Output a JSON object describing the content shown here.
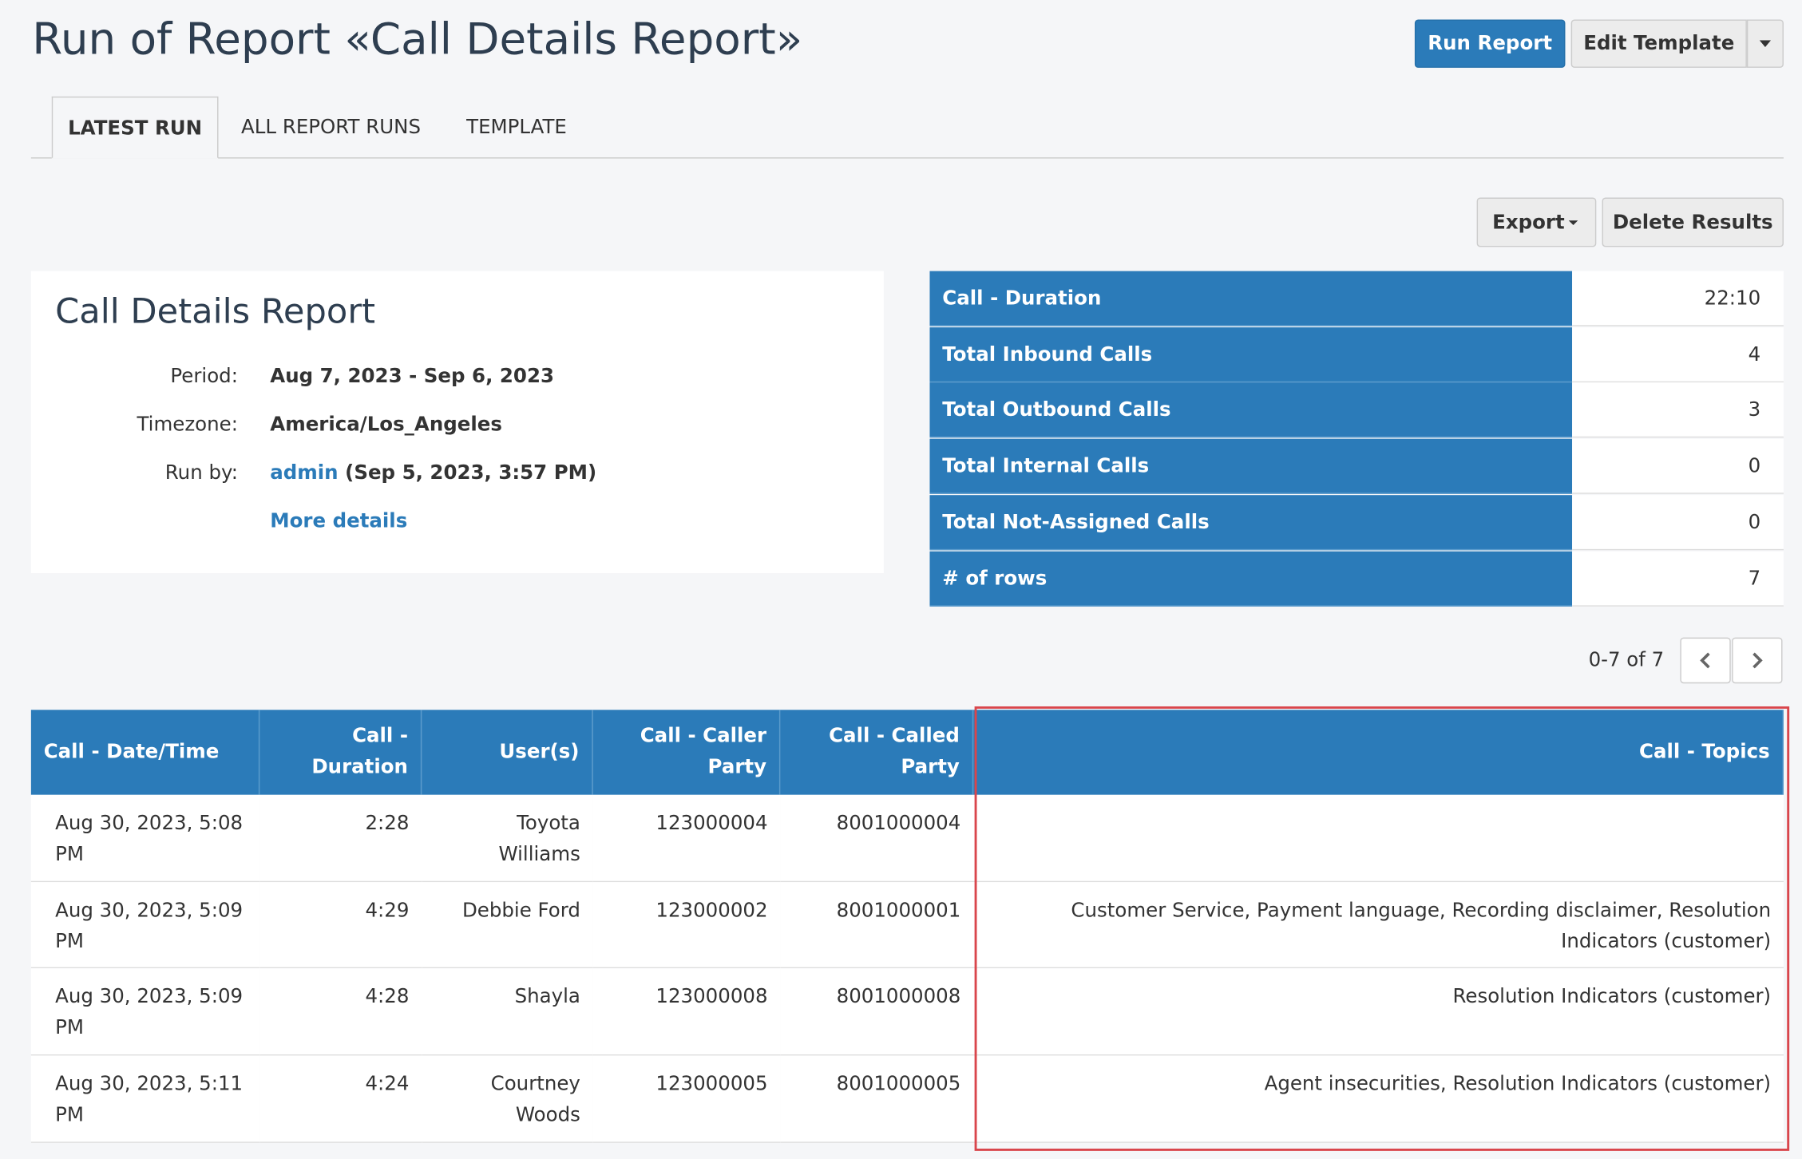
{
  "header": {
    "title": "Run of Report «Call Details Report»",
    "run_button": "Run Report",
    "edit_button": "Edit Template"
  },
  "tabs": [
    "LATEST RUN",
    "ALL REPORT RUNS",
    "TEMPLATE"
  ],
  "actions": {
    "export": "Export",
    "delete": "Delete Results"
  },
  "report": {
    "title": "Call Details Report",
    "fields": [
      {
        "label": "Period:",
        "value": "Aug 7, 2023 - Sep 6, 2023"
      },
      {
        "label": "Timezone:",
        "value": "America/Los_Angeles"
      },
      {
        "label": "Run by:",
        "link": "admin",
        "value": "(Sep 5, 2023, 3:57 PM)"
      }
    ],
    "more_details": "More details"
  },
  "summary": [
    {
      "label": "Call - Duration",
      "value": "22:10"
    },
    {
      "label": "Total Inbound Calls",
      "value": 4
    },
    {
      "label": "Total Outbound Calls",
      "value": 3
    },
    {
      "label": "Total Internal Calls",
      "value": 0
    },
    {
      "label": "Total Not-Assigned Calls",
      "value": 0
    },
    {
      "label": "# of rows",
      "value": 7
    }
  ],
  "pagination": "0-7 of 7",
  "table": {
    "columns": [
      "Call - Date/Time",
      "Call - Duration",
      "User(s)",
      "Call - Caller Party",
      "Call - Called Party",
      "Call - Topics"
    ],
    "rows": [
      [
        "Aug 30, 2023, 5:08 PM",
        "2:28",
        "Toyota Williams",
        "123000004",
        "8001000004",
        null
      ],
      [
        "Aug 30, 2023, 5:09 PM",
        "4:29",
        "Debbie Ford",
        "123000002",
        "8001000001",
        "Customer Service, Payment language, Recording disclaimer, Resolution Indicators (customer)"
      ],
      [
        "Aug 30, 2023, 5:09 PM",
        "4:28",
        "Shayla",
        "123000008",
        "8001000008",
        "Resolution Indicators (customer)"
      ],
      [
        "Aug 30, 2023, 5:11 PM",
        "4:24",
        "Courtney Woods",
        "123000005",
        "8001000005",
        "Agent insecurities, Resolution Indicators (customer)"
      ]
    ]
  }
}
